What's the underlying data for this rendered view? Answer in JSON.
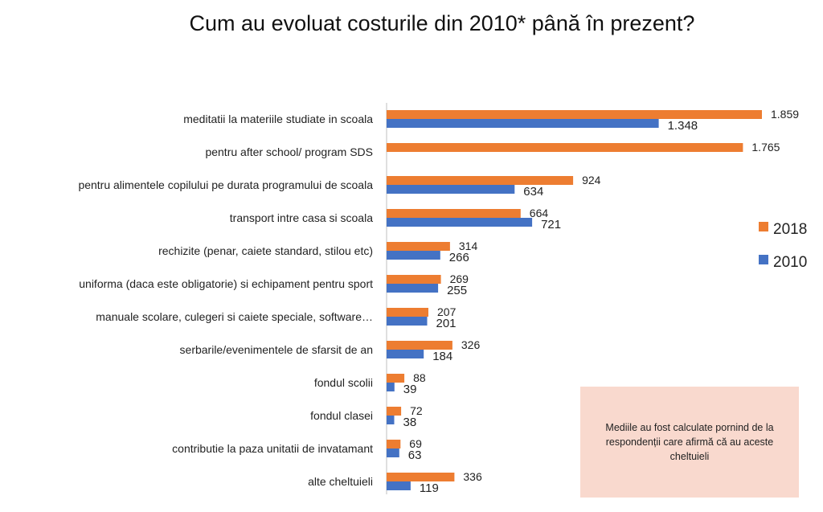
{
  "chart_data": {
    "type": "bar",
    "orientation": "horizontal",
    "title": "Cum au evoluat costurile din 2010* până în prezent?",
    "categories": [
      "meditatii la materiile studiate in scoala",
      "pentru after school/ program SDS",
      "pentru alimentele copilului pe durata programului de scoala",
      "transport intre casa si scoala",
      "rechizite (penar, caiete standard, stilou etc)",
      "uniforma (daca este obligatorie) si echipament pentru sport",
      "manuale scolare, culegeri si caiete speciale, software…",
      "serbarile/evenimentele de sfarsit de an",
      "fondul scolii",
      "fondul clasei",
      "contributie la paza unitatii de invatamant",
      "alte cheltuieli"
    ],
    "series": [
      {
        "name": "2018",
        "color": "#ed7d31",
        "values": [
          1859,
          1765,
          924,
          664,
          314,
          269,
          207,
          326,
          88,
          72,
          69,
          336
        ],
        "labels": [
          "1.859",
          "1.765",
          "924",
          "664",
          "314",
          "269",
          "207",
          "326",
          "88",
          "72",
          "69",
          "336"
        ]
      },
      {
        "name": "2010",
        "color": "#4472c4",
        "values": [
          1348,
          null,
          634,
          721,
          266,
          255,
          201,
          184,
          39,
          38,
          63,
          119
        ],
        "labels": [
          "1.348",
          "",
          "634",
          "721",
          "266",
          "255",
          "201",
          "184",
          "39",
          "38",
          "63",
          "119"
        ]
      }
    ],
    "legend_position": "right",
    "grid": false
  },
  "note": "Mediile au fost calculate pornind de la respondenții care afirmă că au aceste cheltuieli"
}
